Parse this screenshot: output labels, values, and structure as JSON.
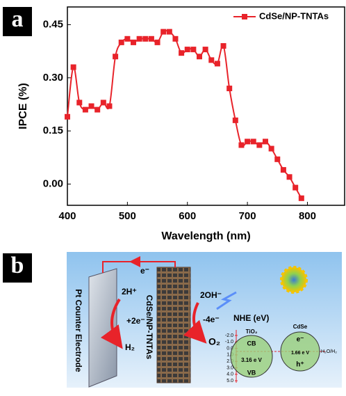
{
  "panel_labels": [
    "a",
    "b"
  ],
  "chart_data": {
    "type": "line",
    "x_label": "Wavelength (nm)",
    "y_label": "IPCE (%)",
    "x": [
      400,
      410,
      420,
      430,
      440,
      450,
      460,
      470,
      480,
      490,
      500,
      510,
      520,
      530,
      540,
      550,
      560,
      570,
      580,
      590,
      600,
      610,
      620,
      630,
      640,
      650,
      660,
      670,
      680,
      690,
      700,
      710,
      720,
      730,
      740,
      750,
      760,
      770,
      780,
      790
    ],
    "series": [
      {
        "name": "CdSe/NP-TNTAs",
        "color": "#e8232a",
        "values": [
          0.19,
          0.33,
          0.23,
          0.21,
          0.22,
          0.21,
          0.23,
          0.22,
          0.36,
          0.4,
          0.41,
          0.4,
          0.41,
          0.41,
          0.41,
          0.4,
          0.43,
          0.43,
          0.41,
          0.37,
          0.38,
          0.38,
          0.36,
          0.38,
          0.35,
          0.34,
          0.39,
          0.27,
          0.18,
          0.11,
          0.12,
          0.12,
          0.11,
          0.12,
          0.1,
          0.07,
          0.04,
          0.02,
          -0.01,
          -0.04
        ]
      }
    ],
    "xlim": [
      400,
      862
    ],
    "ylim": [
      -0.06,
      0.5
    ],
    "xticks": [
      400,
      500,
      600,
      700,
      800
    ],
    "yticks": [
      {
        "value": 0,
        "label": "0.00"
      },
      {
        "value": 0.15,
        "label": "0.15"
      },
      {
        "value": 0.3,
        "label": "0.30"
      },
      {
        "value": 0.45,
        "label": "0.45"
      }
    ],
    "legend": "upper right"
  },
  "diagram": {
    "electron_top": "e⁻",
    "h_plus": "2H⁺",
    "plus_2e": "+2e⁻",
    "h2": "H₂",
    "pt_electrode": "Pt Counter Electrode",
    "photoanode": "CdSe/NP-TNTAs",
    "oh": "2OH⁻",
    "minus_4e": "-4e⁻",
    "o2": "O₂",
    "nhe": "NHE (eV)",
    "nhe_ticks": [
      "-2.0",
      "-1.0",
      "0.0",
      "1.0",
      "2.0",
      "3.0",
      "4.0",
      "5.0"
    ],
    "tio2": "TiO₂",
    "cdse": "CdSe",
    "cb": "CB",
    "vb": "VB",
    "tio2_gap": "3.16 e V",
    "cdse_gap": "1.66 e V",
    "cdse_e": "e⁻",
    "cdse_h": "h⁺",
    "redox": "H₂O/H₂"
  }
}
